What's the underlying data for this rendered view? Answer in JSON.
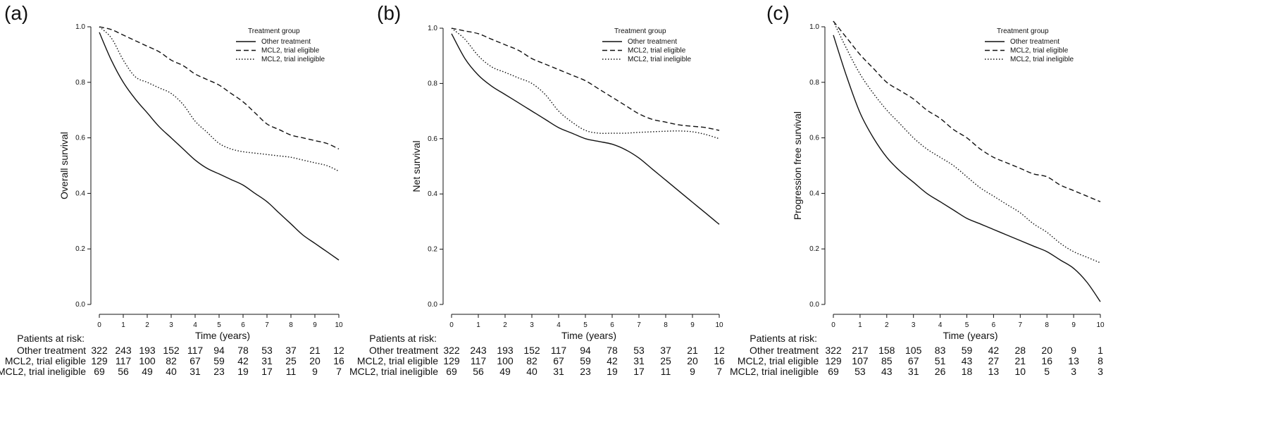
{
  "chart_data": [
    {
      "type": "line",
      "panel_label": "(a)",
      "ylabel": "Overall survival",
      "xlabel": "Time (years)",
      "xlim": [
        0,
        10
      ],
      "ylim": [
        0,
        1
      ],
      "x_ticks": [
        "0",
        "1",
        "2",
        "3",
        "4",
        "5",
        "6",
        "7",
        "8",
        "9",
        "10"
      ],
      "y_ticks": [
        "0.0",
        "0.2",
        "0.4",
        "0.6",
        "0.8",
        "1.0"
      ],
      "legend": {
        "title": "Treatment group",
        "placement": "top-right",
        "entries": [
          {
            "label": "Other treatment",
            "style": "solid"
          },
          {
            "label": "MCL2, trial eligible",
            "style": "dashed"
          },
          {
            "label": "MCL2, trial ineligible",
            "style": "dotted"
          }
        ]
      },
      "x": [
        0,
        0.5,
        1,
        1.5,
        2,
        2.5,
        3,
        3.5,
        4,
        4.5,
        5,
        5.5,
        6,
        6.5,
        7,
        7.5,
        8,
        8.5,
        9,
        9.5,
        10
      ],
      "series": [
        {
          "name": "Other treatment",
          "style": "solid",
          "values": [
            0.98,
            0.88,
            0.8,
            0.74,
            0.69,
            0.64,
            0.6,
            0.56,
            0.52,
            0.49,
            0.47,
            0.45,
            0.43,
            0.4,
            0.37,
            0.33,
            0.29,
            0.25,
            0.22,
            0.19,
            0.16
          ]
        },
        {
          "name": "MCL2, trial eligible",
          "style": "dashed",
          "values": [
            1.0,
            0.99,
            0.97,
            0.95,
            0.93,
            0.91,
            0.88,
            0.86,
            0.83,
            0.81,
            0.79,
            0.76,
            0.73,
            0.69,
            0.65,
            0.63,
            0.61,
            0.6,
            0.59,
            0.58,
            0.56
          ]
        },
        {
          "name": "MCL2, trial ineligible",
          "style": "dotted",
          "values": [
            1.0,
            0.96,
            0.88,
            0.82,
            0.8,
            0.78,
            0.76,
            0.72,
            0.66,
            0.62,
            0.58,
            0.56,
            0.55,
            0.545,
            0.54,
            0.535,
            0.53,
            0.52,
            0.51,
            0.5,
            0.48
          ]
        }
      ],
      "risk_table": {
        "header": "Patients at risk:",
        "rows": [
          {
            "label": "Other treatment",
            "values": [
              "322",
              "243",
              "193",
              "152",
              "117",
              "94",
              "78",
              "53",
              "37",
              "21",
              "12"
            ]
          },
          {
            "label": "MCL2, trial eligible",
            "values": [
              "129",
              "117",
              "100",
              "82",
              "67",
              "59",
              "42",
              "31",
              "25",
              "20",
              "16"
            ]
          },
          {
            "label": "MCL2, trial ineligible",
            "values": [
              "69",
              "56",
              "49",
              "40",
              "31",
              "23",
              "19",
              "17",
              "11",
              "9",
              "7"
            ]
          }
        ]
      }
    },
    {
      "type": "line",
      "panel_label": "(b)",
      "ylabel": "Net survival",
      "xlabel": "Time (years)",
      "xlim": [
        0,
        10
      ],
      "ylim": [
        0,
        1
      ],
      "x_ticks": [
        "0",
        "1",
        "2",
        "3",
        "4",
        "5",
        "6",
        "7",
        "8",
        "9",
        "10"
      ],
      "y_ticks": [
        "0.0",
        "0.2",
        "0.4",
        "0.6",
        "0.8",
        "1.0"
      ],
      "legend": {
        "title": "Treatment group",
        "placement": "top-right",
        "entries": [
          {
            "label": "Other treatment",
            "style": "solid"
          },
          {
            "label": "MCL2, trial eligible",
            "style": "dashed"
          },
          {
            "label": "MCL2, trial ineligible",
            "style": "dotted"
          }
        ]
      },
      "x": [
        0,
        0.5,
        1,
        1.5,
        2,
        2.5,
        3,
        3.5,
        4,
        4.5,
        5,
        5.5,
        6,
        6.5,
        7,
        7.5,
        8,
        8.5,
        9,
        9.5,
        10
      ],
      "series": [
        {
          "name": "Other treatment",
          "style": "solid",
          "values": [
            0.98,
            0.89,
            0.83,
            0.79,
            0.76,
            0.73,
            0.7,
            0.67,
            0.64,
            0.62,
            0.6,
            0.59,
            0.58,
            0.56,
            0.53,
            0.49,
            0.45,
            0.41,
            0.37,
            0.33,
            0.29
          ]
        },
        {
          "name": "MCL2, trial eligible",
          "style": "dashed",
          "values": [
            1.0,
            0.99,
            0.98,
            0.96,
            0.94,
            0.92,
            0.89,
            0.87,
            0.85,
            0.83,
            0.81,
            0.78,
            0.75,
            0.72,
            0.69,
            0.67,
            0.66,
            0.65,
            0.645,
            0.64,
            0.63
          ]
        },
        {
          "name": "MCL2, trial ineligible",
          "style": "dotted",
          "values": [
            1.0,
            0.96,
            0.9,
            0.86,
            0.84,
            0.82,
            0.8,
            0.76,
            0.7,
            0.66,
            0.63,
            0.62,
            0.62,
            0.62,
            0.623,
            0.625,
            0.627,
            0.628,
            0.625,
            0.615,
            0.6
          ]
        }
      ],
      "risk_table": {
        "header": "Patients at risk:",
        "rows": [
          {
            "label": "Other treatment",
            "values": [
              "322",
              "243",
              "193",
              "152",
              "117",
              "94",
              "78",
              "53",
              "37",
              "21",
              "12"
            ]
          },
          {
            "label": "MCL2, trial eligible",
            "values": [
              "129",
              "117",
              "100",
              "82",
              "67",
              "59",
              "42",
              "31",
              "25",
              "20",
              "16"
            ]
          },
          {
            "label": "MCL2, trial ineligible",
            "values": [
              "69",
              "56",
              "49",
              "40",
              "31",
              "23",
              "19",
              "17",
              "11",
              "9",
              "7"
            ]
          }
        ]
      }
    },
    {
      "type": "line",
      "panel_label": "(c)",
      "ylabel": "Progression free survival",
      "xlabel": "Time (years)",
      "xlim": [
        0,
        10
      ],
      "ylim": [
        0,
        1
      ],
      "x_ticks": [
        "0",
        "1",
        "2",
        "3",
        "4",
        "5",
        "6",
        "7",
        "8",
        "9",
        "10"
      ],
      "y_ticks": [
        "0.0",
        "0.2",
        "0.4",
        "0.6",
        "0.8",
        "1.0"
      ],
      "legend": {
        "title": "Treatment group",
        "placement": "top-right",
        "entries": [
          {
            "label": "Other treatment",
            "style": "solid"
          },
          {
            "label": "MCL2, trial eligible",
            "style": "dashed"
          },
          {
            "label": "MCL2, trial ineligible",
            "style": "dotted"
          }
        ]
      },
      "x": [
        0,
        0.5,
        1,
        1.5,
        2,
        2.5,
        3,
        3.5,
        4,
        4.5,
        5,
        5.5,
        6,
        6.5,
        7,
        7.5,
        8,
        8.5,
        9,
        9.5,
        10
      ],
      "series": [
        {
          "name": "Other treatment",
          "style": "solid",
          "values": [
            0.97,
            0.82,
            0.69,
            0.6,
            0.53,
            0.48,
            0.44,
            0.4,
            0.37,
            0.34,
            0.31,
            0.29,
            0.27,
            0.25,
            0.23,
            0.21,
            0.19,
            0.16,
            0.13,
            0.08,
            0.01
          ]
        },
        {
          "name": "MCL2, trial eligible",
          "style": "dashed",
          "values": [
            1.02,
            0.96,
            0.9,
            0.85,
            0.8,
            0.77,
            0.74,
            0.7,
            0.67,
            0.63,
            0.6,
            0.56,
            0.53,
            0.51,
            0.49,
            0.47,
            0.46,
            0.43,
            0.41,
            0.39,
            0.37
          ]
        },
        {
          "name": "MCL2, trial ineligible",
          "style": "dotted",
          "values": [
            1.02,
            0.92,
            0.83,
            0.76,
            0.7,
            0.65,
            0.6,
            0.56,
            0.53,
            0.5,
            0.46,
            0.42,
            0.39,
            0.36,
            0.33,
            0.29,
            0.26,
            0.22,
            0.19,
            0.17,
            0.15
          ]
        }
      ],
      "risk_table": {
        "header": "Patients at risk:",
        "rows": [
          {
            "label": "Other treatment",
            "values": [
              "322",
              "217",
              "158",
              "105",
              "83",
              "59",
              "42",
              "28",
              "20",
              "9",
              "1"
            ]
          },
          {
            "label": "MCL2, trial eligible",
            "values": [
              "129",
              "107",
              "85",
              "67",
              "51",
              "43",
              "27",
              "21",
              "16",
              "13",
              "8"
            ]
          },
          {
            "label": "MCL2, trial ineligible",
            "values": [
              "69",
              "53",
              "43",
              "31",
              "26",
              "18",
              "13",
              "10",
              "5",
              "3",
              "3"
            ]
          }
        ]
      }
    }
  ]
}
